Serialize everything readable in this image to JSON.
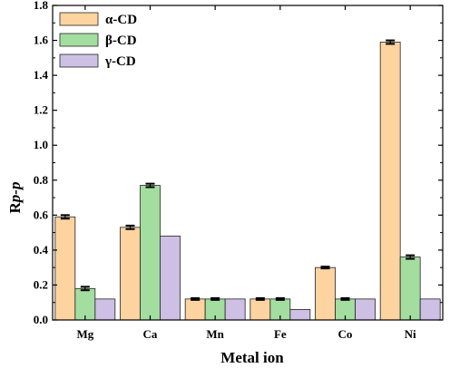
{
  "chart_data": {
    "type": "bar",
    "title": "",
    "xlabel": "Metal ion",
    "ylabel_prefix": "R",
    "ylabel_italic": "p-p",
    "ylim": [
      0,
      1.8
    ],
    "yticks": [
      "0.0",
      "0.2",
      "0.4",
      "0.6",
      "0.8",
      "1.0",
      "1.2",
      "1.4",
      "1.6",
      "1.8"
    ],
    "grid": false,
    "legend_position": "top-left",
    "categories": [
      "Mg",
      "Ca",
      "Mn",
      "Fe",
      "Co",
      "Ni"
    ],
    "series": [
      {
        "name": "α-CD",
        "color": "#FDD3A0",
        "values": [
          0.59,
          0.53,
          0.12,
          0.12,
          0.3,
          1.59
        ],
        "errors": [
          0.01,
          0.01,
          0.005,
          0.005,
          0.005,
          0.01
        ]
      },
      {
        "name": "β-CD",
        "color": "#A3DEA0",
        "values": [
          0.18,
          0.77,
          0.12,
          0.12,
          0.12,
          0.36
        ],
        "errors": [
          0.01,
          0.01,
          0.005,
          0.005,
          0.005,
          0.01
        ]
      },
      {
        "name": "γ-CD",
        "color": "#CDC0E4",
        "values": [
          0.12,
          0.48,
          0.12,
          0.06,
          0.12,
          0.12
        ],
        "errors": [
          0.0,
          0.0,
          0.0,
          0.0,
          0.0,
          0.0
        ]
      }
    ]
  }
}
